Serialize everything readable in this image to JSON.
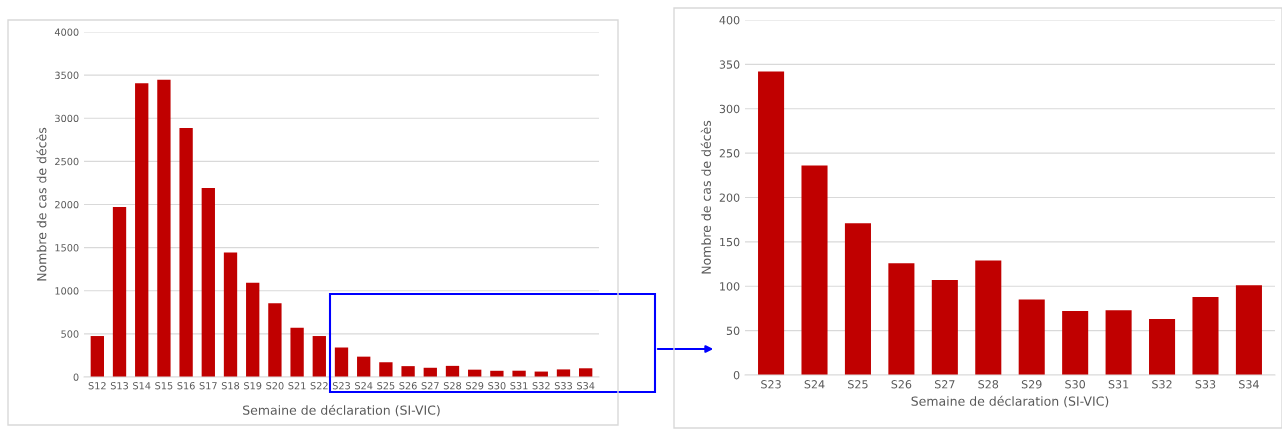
{
  "chart_data": [
    {
      "type": "bar",
      "xlabel": "Semaine de déclaration (SI-VIC)",
      "ylabel": "Nombre de cas de décès",
      "categories": [
        "S12",
        "S13",
        "S14",
        "S15",
        "S16",
        "S17",
        "S18",
        "S19",
        "S20",
        "S21",
        "S22",
        "S23",
        "S24",
        "S25",
        "S26",
        "S27",
        "S28",
        "S29",
        "S30",
        "S31",
        "S32",
        "S33",
        "S34"
      ],
      "values": [
        475,
        1970,
        3405,
        3446,
        2888,
        2190,
        1444,
        1092,
        855,
        571,
        475,
        342,
        236,
        171,
        126,
        107,
        129,
        85,
        72,
        73,
        63,
        88,
        101
      ],
      "color": "#c00000",
      "ylim": [
        0,
        4000
      ],
      "yticks": [
        0,
        500,
        1000,
        1500,
        2000,
        2500,
        3000,
        3500,
        4000
      ],
      "grid": "y"
    },
    {
      "type": "bar",
      "xlabel": "Semaine de déclaration (SI-VIC)",
      "ylabel": "Nombre de cas de décès",
      "categories": [
        "S23",
        "S24",
        "S25",
        "S26",
        "S27",
        "S28",
        "S29",
        "S30",
        "S31",
        "S32",
        "S33",
        "S34"
      ],
      "values": [
        342,
        236,
        171,
        126,
        107,
        129,
        85,
        72,
        73,
        63,
        88,
        101
      ],
      "color": "#c00000",
      "ylim": [
        0,
        400
      ],
      "yticks": [
        0,
        50,
        100,
        150,
        200,
        250,
        300,
        350,
        400
      ],
      "grid": "y"
    }
  ]
}
